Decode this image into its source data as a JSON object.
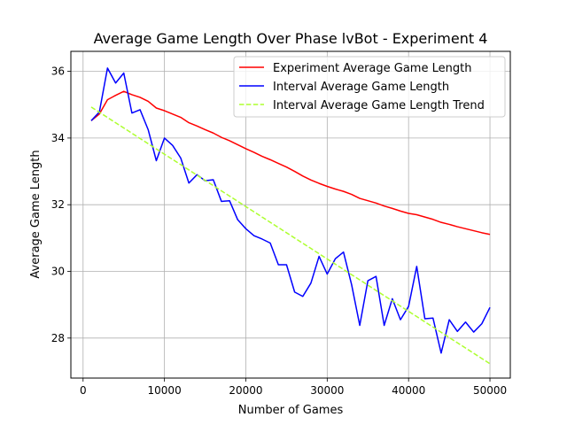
{
  "chart_data": {
    "type": "line",
    "title": "Average Game Length Over Phase lvBot - Experiment 4",
    "xlabel": "Number of Games",
    "ylabel": "Average Game Length",
    "xlim": [
      -1500,
      52500
    ],
    "ylim": [
      26.8,
      36.6
    ],
    "x_ticks": [
      0,
      10000,
      20000,
      30000,
      40000,
      50000
    ],
    "y_ticks": [
      28,
      30,
      32,
      34,
      36
    ],
    "grid": true,
    "legend_position": "top-right",
    "series": [
      {
        "name": "Experiment Average Game Length",
        "color": "#ff0000",
        "style": "solid",
        "x": [
          1000,
          2000,
          3000,
          4000,
          5000,
          6000,
          7000,
          8000,
          9000,
          10000,
          11000,
          12000,
          13000,
          14000,
          15000,
          16000,
          17000,
          18000,
          19000,
          20000,
          21000,
          22000,
          23000,
          24000,
          25000,
          26000,
          27000,
          28000,
          29000,
          30000,
          31000,
          32000,
          33000,
          34000,
          35000,
          36000,
          37000,
          38000,
          39000,
          40000,
          41000,
          42000,
          43000,
          44000,
          45000,
          46000,
          47000,
          48000,
          49000,
          50000
        ],
        "y": [
          34.52,
          34.72,
          35.15,
          35.28,
          35.4,
          35.3,
          35.22,
          35.1,
          34.9,
          34.82,
          34.72,
          34.62,
          34.46,
          34.36,
          34.25,
          34.15,
          34.02,
          33.92,
          33.8,
          33.68,
          33.57,
          33.45,
          33.35,
          33.24,
          33.13,
          33.0,
          32.86,
          32.74,
          32.64,
          32.55,
          32.47,
          32.4,
          32.31,
          32.19,
          32.12,
          32.05,
          31.96,
          31.89,
          31.81,
          31.74,
          31.7,
          31.63,
          31.56,
          31.47,
          31.41,
          31.34,
          31.28,
          31.22,
          31.16,
          31.11
        ]
      },
      {
        "name": "Interval Average Game Length",
        "color": "#0000ff",
        "style": "solid",
        "x": [
          1000,
          2000,
          3000,
          4000,
          5000,
          6000,
          7000,
          8000,
          9000,
          10000,
          11000,
          12000,
          13000,
          14000,
          15000,
          16000,
          17000,
          18000,
          19000,
          20000,
          21000,
          22000,
          23000,
          24000,
          25000,
          26000,
          27000,
          28000,
          29000,
          30000,
          31000,
          32000,
          33000,
          34000,
          35000,
          36000,
          37000,
          38000,
          39000,
          40000,
          41000,
          42000,
          43000,
          44000,
          45000,
          46000,
          47000,
          48000,
          49000,
          50000
        ],
        "y": [
          34.52,
          34.78,
          36.1,
          35.65,
          35.95,
          34.75,
          34.85,
          34.25,
          33.32,
          34.0,
          33.78,
          33.4,
          32.65,
          32.9,
          32.72,
          32.75,
          32.1,
          32.12,
          31.55,
          31.28,
          31.07,
          30.97,
          30.85,
          30.2,
          30.2,
          29.38,
          29.25,
          29.65,
          30.45,
          29.92,
          30.38,
          30.58,
          29.6,
          28.38,
          29.72,
          29.85,
          28.38,
          29.18,
          28.55,
          28.95,
          30.15,
          28.58,
          28.6,
          27.55,
          28.55,
          28.2,
          28.48,
          28.18,
          28.43,
          28.92
        ]
      },
      {
        "name": "Interval Average Game Length Trend",
        "color": "#adff2f",
        "style": "dashed",
        "x": [
          1000,
          50000
        ],
        "y": [
          34.93,
          27.23
        ]
      }
    ]
  }
}
